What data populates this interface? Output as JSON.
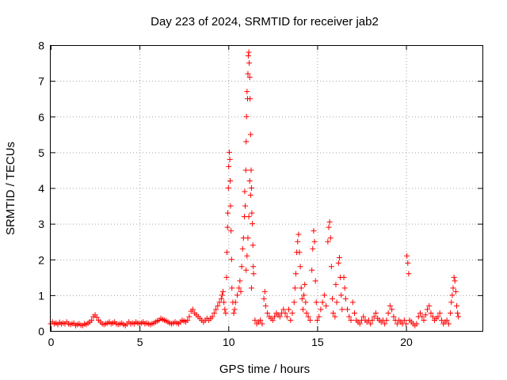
{
  "chart_data": {
    "type": "scatter",
    "title": "Day 223 of 2024, SRMTID for receiver jab2",
    "xlabel": "GPS time / hours",
    "ylabel": "SRMTID / TECUs",
    "xlim": [
      0,
      24.3
    ],
    "ylim": [
      0,
      8
    ],
    "xticks": [
      "0",
      "5",
      "10",
      "15",
      "20"
    ],
    "yticks": [
      "0",
      "1",
      "2",
      "3",
      "4",
      "5",
      "6",
      "7",
      "8"
    ],
    "grid": true,
    "marker": "plus",
    "color": "#ff0000",
    "series": [
      {
        "name": "jab2",
        "points": [
          [
            0.0,
            0.2
          ],
          [
            0.1,
            0.25
          ],
          [
            0.2,
            0.2
          ],
          [
            0.3,
            0.22
          ],
          [
            0.4,
            0.18
          ],
          [
            0.5,
            0.24
          ],
          [
            0.6,
            0.2
          ],
          [
            0.7,
            0.22
          ],
          [
            0.8,
            0.2
          ],
          [
            0.9,
            0.25
          ],
          [
            1.0,
            0.2
          ],
          [
            1.1,
            0.18
          ],
          [
            1.2,
            0.2
          ],
          [
            1.3,
            0.22
          ],
          [
            1.4,
            0.15
          ],
          [
            1.5,
            0.18
          ],
          [
            1.6,
            0.2
          ],
          [
            1.7,
            0.16
          ],
          [
            1.8,
            0.15
          ],
          [
            1.9,
            0.2
          ],
          [
            2.0,
            0.18
          ],
          [
            2.1,
            0.22
          ],
          [
            2.2,
            0.25
          ],
          [
            2.3,
            0.3
          ],
          [
            2.4,
            0.4
          ],
          [
            2.5,
            0.45
          ],
          [
            2.6,
            0.38
          ],
          [
            2.7,
            0.3
          ],
          [
            2.8,
            0.25
          ],
          [
            2.9,
            0.2
          ],
          [
            3.0,
            0.18
          ],
          [
            3.1,
            0.2
          ],
          [
            3.2,
            0.22
          ],
          [
            3.3,
            0.25
          ],
          [
            3.4,
            0.2
          ],
          [
            3.5,
            0.22
          ],
          [
            3.6,
            0.25
          ],
          [
            3.7,
            0.2
          ],
          [
            3.8,
            0.18
          ],
          [
            3.9,
            0.2
          ],
          [
            4.0,
            0.22
          ],
          [
            4.1,
            0.18
          ],
          [
            4.2,
            0.15
          ],
          [
            4.3,
            0.2
          ],
          [
            4.4,
            0.25
          ],
          [
            4.5,
            0.2
          ],
          [
            4.6,
            0.22
          ],
          [
            4.7,
            0.2
          ],
          [
            4.8,
            0.25
          ],
          [
            4.9,
            0.22
          ],
          [
            5.0,
            0.2
          ],
          [
            5.1,
            0.22
          ],
          [
            5.2,
            0.25
          ],
          [
            5.3,
            0.2
          ],
          [
            5.4,
            0.22
          ],
          [
            5.5,
            0.2
          ],
          [
            5.6,
            0.18
          ],
          [
            5.7,
            0.2
          ],
          [
            5.8,
            0.22
          ],
          [
            5.9,
            0.25
          ],
          [
            6.0,
            0.28
          ],
          [
            6.1,
            0.3
          ],
          [
            6.2,
            0.35
          ],
          [
            6.3,
            0.32
          ],
          [
            6.4,
            0.3
          ],
          [
            6.5,
            0.28
          ],
          [
            6.6,
            0.25
          ],
          [
            6.7,
            0.22
          ],
          [
            6.8,
            0.2
          ],
          [
            6.9,
            0.22
          ],
          [
            7.0,
            0.25
          ],
          [
            7.1,
            0.22
          ],
          [
            7.2,
            0.2
          ],
          [
            7.3,
            0.25
          ],
          [
            7.4,
            0.3
          ],
          [
            7.5,
            0.28
          ],
          [
            7.6,
            0.25
          ],
          [
            7.7,
            0.3
          ],
          [
            7.8,
            0.4
          ],
          [
            7.9,
            0.55
          ],
          [
            8.0,
            0.6
          ],
          [
            8.1,
            0.5
          ],
          [
            8.2,
            0.45
          ],
          [
            8.3,
            0.4
          ],
          [
            8.4,
            0.35
          ],
          [
            8.5,
            0.3
          ],
          [
            8.6,
            0.25
          ],
          [
            8.7,
            0.3
          ],
          [
            8.8,
            0.35
          ],
          [
            8.9,
            0.3
          ],
          [
            9.0,
            0.35
          ],
          [
            9.1,
            0.4
          ],
          [
            9.2,
            0.5
          ],
          [
            9.3,
            0.6
          ],
          [
            9.4,
            0.7
          ],
          [
            9.5,
            0.8
          ],
          [
            9.6,
            0.9
          ],
          [
            9.65,
            1.0
          ],
          [
            9.7,
            1.1
          ],
          [
            9.75,
            0.8
          ],
          [
            9.8,
            0.6
          ],
          [
            9.85,
            0.5
          ],
          [
            9.9,
            1.5
          ],
          [
            9.92,
            2.2
          ],
          [
            9.95,
            2.9
          ],
          [
            9.97,
            3.3
          ],
          [
            10.0,
            4.0
          ],
          [
            10.02,
            4.6
          ],
          [
            10.05,
            5.0
          ],
          [
            10.08,
            4.8
          ],
          [
            10.1,
            4.2
          ],
          [
            10.12,
            3.5
          ],
          [
            10.15,
            2.8
          ],
          [
            10.18,
            2.0
          ],
          [
            10.2,
            1.2
          ],
          [
            10.25,
            0.8
          ],
          [
            10.3,
            0.5
          ],
          [
            10.35,
            0.6
          ],
          [
            10.4,
            0.8
          ],
          [
            10.5,
            1.0
          ],
          [
            10.6,
            1.2
          ],
          [
            10.65,
            1.4
          ],
          [
            10.7,
            1.1
          ],
          [
            10.75,
            1.8
          ],
          [
            10.8,
            2.3
          ],
          [
            10.85,
            2.6
          ],
          [
            10.9,
            3.2
          ],
          [
            10.92,
            3.9
          ],
          [
            10.95,
            3.5
          ],
          [
            10.98,
            4.5
          ],
          [
            11.0,
            5.3
          ],
          [
            11.02,
            6.0
          ],
          [
            11.05,
            6.7
          ],
          [
            11.08,
            6.5
          ],
          [
            11.1,
            7.2
          ],
          [
            11.12,
            7.7
          ],
          [
            11.15,
            7.8
          ],
          [
            11.17,
            7.5
          ],
          [
            11.2,
            7.1
          ],
          [
            11.22,
            6.5
          ],
          [
            11.25,
            5.5
          ],
          [
            11.28,
            4.5
          ],
          [
            11.3,
            4.0
          ],
          [
            11.32,
            3.3
          ],
          [
            11.35,
            3.0
          ],
          [
            11.38,
            2.4
          ],
          [
            11.4,
            1.8
          ],
          [
            11.42,
            1.6
          ],
          [
            11.2,
            4.2
          ],
          [
            11.25,
            3.8
          ],
          [
            11.15,
            3.2
          ],
          [
            11.1,
            2.6
          ],
          [
            11.05,
            2.1
          ],
          [
            11.0,
            1.7
          ],
          [
            11.3,
            1.2
          ],
          [
            11.5,
            0.3
          ],
          [
            11.6,
            0.2
          ],
          [
            11.7,
            0.25
          ],
          [
            11.8,
            0.3
          ],
          [
            11.9,
            0.2
          ],
          [
            12.0,
            0.9
          ],
          [
            12.05,
            1.1
          ],
          [
            12.1,
            0.7
          ],
          [
            12.2,
            0.5
          ],
          [
            12.3,
            0.4
          ],
          [
            12.4,
            0.35
          ],
          [
            12.5,
            0.3
          ],
          [
            12.6,
            0.4
          ],
          [
            12.7,
            0.5
          ],
          [
            12.8,
            0.45
          ],
          [
            12.9,
            0.4
          ],
          [
            13.0,
            0.5
          ],
          [
            13.1,
            0.6
          ],
          [
            13.2,
            0.5
          ],
          [
            13.3,
            0.4
          ],
          [
            13.4,
            0.6
          ],
          [
            13.5,
            0.3
          ],
          [
            13.6,
            0.5
          ],
          [
            13.7,
            0.8
          ],
          [
            13.75,
            1.2
          ],
          [
            13.8,
            1.6
          ],
          [
            13.85,
            2.2
          ],
          [
            13.9,
            2.5
          ],
          [
            13.95,
            2.7
          ],
          [
            14.0,
            2.2
          ],
          [
            14.05,
            1.8
          ],
          [
            14.1,
            1.2
          ],
          [
            14.15,
            0.9
          ],
          [
            14.2,
            0.6
          ],
          [
            14.25,
            1.0
          ],
          [
            14.3,
            1.3
          ],
          [
            14.35,
            0.8
          ],
          [
            14.4,
            0.5
          ],
          [
            14.5,
            0.4
          ],
          [
            14.6,
            0.3
          ],
          [
            14.7,
            1.7
          ],
          [
            14.75,
            2.3
          ],
          [
            14.8,
            2.8
          ],
          [
            14.85,
            2.5
          ],
          [
            14.9,
            1.4
          ],
          [
            14.95,
            0.8
          ],
          [
            15.0,
            0.3
          ],
          [
            15.1,
            0.4
          ],
          [
            15.2,
            0.6
          ],
          [
            15.3,
            0.8
          ],
          [
            15.4,
            1.0
          ],
          [
            15.5,
            0.7
          ],
          [
            15.6,
            2.5
          ],
          [
            15.65,
            2.9
          ],
          [
            15.7,
            3.05
          ],
          [
            15.75,
            2.6
          ],
          [
            15.8,
            1.8
          ],
          [
            15.85,
            0.9
          ],
          [
            15.9,
            0.5
          ],
          [
            16.0,
            0.4
          ],
          [
            16.05,
            1.3
          ],
          [
            16.1,
            0.8
          ],
          [
            16.2,
            1.9
          ],
          [
            16.25,
            2.05
          ],
          [
            16.3,
            1.5
          ],
          [
            16.35,
            1.0
          ],
          [
            16.4,
            0.6
          ],
          [
            16.5,
            1.5
          ],
          [
            16.55,
            1.2
          ],
          [
            16.6,
            0.9
          ],
          [
            16.7,
            0.6
          ],
          [
            16.8,
            0.4
          ],
          [
            16.9,
            0.3
          ],
          [
            17.0,
            0.8
          ],
          [
            17.1,
            0.5
          ],
          [
            17.2,
            0.3
          ],
          [
            17.3,
            0.25
          ],
          [
            17.4,
            0.2
          ],
          [
            17.5,
            0.3
          ],
          [
            17.6,
            0.4
          ],
          [
            17.7,
            0.3
          ],
          [
            17.8,
            0.25
          ],
          [
            17.9,
            0.3
          ],
          [
            18.0,
            0.2
          ],
          [
            18.1,
            0.3
          ],
          [
            18.2,
            0.4
          ],
          [
            18.3,
            0.5
          ],
          [
            18.4,
            0.35
          ],
          [
            18.5,
            0.3
          ],
          [
            18.6,
            0.25
          ],
          [
            18.7,
            0.3
          ],
          [
            18.8,
            0.2
          ],
          [
            18.9,
            0.3
          ],
          [
            19.0,
            0.5
          ],
          [
            19.1,
            0.7
          ],
          [
            19.2,
            0.6
          ],
          [
            19.3,
            0.4
          ],
          [
            19.4,
            0.3
          ],
          [
            19.5,
            0.2
          ],
          [
            19.6,
            0.3
          ],
          [
            19.7,
            0.25
          ],
          [
            19.8,
            0.2
          ],
          [
            19.9,
            0.3
          ],
          [
            20.0,
            0.2
          ],
          [
            20.05,
            2.1
          ],
          [
            20.1,
            1.9
          ],
          [
            20.15,
            1.6
          ],
          [
            20.2,
            0.3
          ],
          [
            20.3,
            0.25
          ],
          [
            20.4,
            0.2
          ],
          [
            20.5,
            0.15
          ],
          [
            20.6,
            0.2
          ],
          [
            20.7,
            0.4
          ],
          [
            20.8,
            0.5
          ],
          [
            20.9,
            0.4
          ],
          [
            21.0,
            0.3
          ],
          [
            21.1,
            0.45
          ],
          [
            21.2,
            0.6
          ],
          [
            21.3,
            0.7
          ],
          [
            21.4,
            0.5
          ],
          [
            21.5,
            0.4
          ],
          [
            21.6,
            0.3
          ],
          [
            21.7,
            0.35
          ],
          [
            21.8,
            0.4
          ],
          [
            21.9,
            0.5
          ],
          [
            22.0,
            0.3
          ],
          [
            22.1,
            0.2
          ],
          [
            22.2,
            0.25
          ],
          [
            22.3,
            0.3
          ],
          [
            22.4,
            0.2
          ],
          [
            22.5,
            0.5
          ],
          [
            22.55,
            0.8
          ],
          [
            22.6,
            1.0
          ],
          [
            22.65,
            1.2
          ],
          [
            22.7,
            1.5
          ],
          [
            22.75,
            1.4
          ],
          [
            22.8,
            1.1
          ],
          [
            22.85,
            0.7
          ],
          [
            22.9,
            0.5
          ],
          [
            22.95,
            0.4
          ]
        ]
      }
    ]
  }
}
